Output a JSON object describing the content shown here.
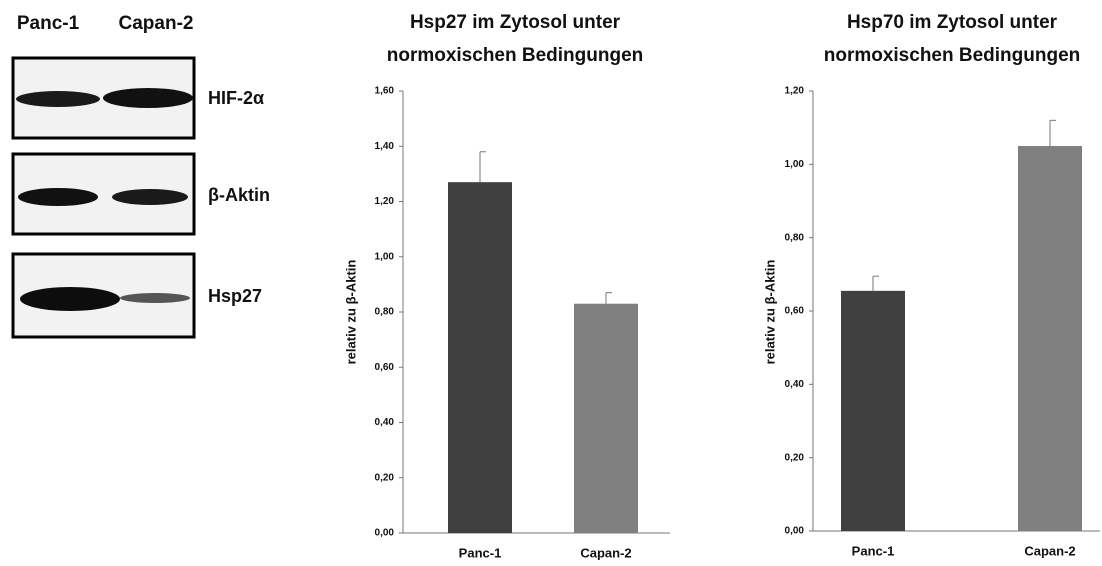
{
  "blot": {
    "columns": [
      "Panc-1",
      "Capan-2"
    ],
    "rows": [
      "HIF-2α",
      "β-Aktin",
      "Hsp27"
    ]
  },
  "chart_data": [
    {
      "type": "bar",
      "title": [
        "Hsp27 im Zytosol unter",
        "normoxischen Bedingungen"
      ],
      "y_label": "relativ zu β-Aktin",
      "categories": [
        "Panc-1",
        "Capan-2"
      ],
      "values": [
        1.27,
        0.83
      ],
      "errors": [
        0.11,
        0.04
      ],
      "colors": [
        "#404040",
        "#808080"
      ],
      "ylim": [
        0,
        1.6
      ],
      "yticks": [
        {
          "value": 0,
          "label": "0,00"
        },
        {
          "value": 0.2,
          "label": "0,20"
        },
        {
          "value": 0.4,
          "label": "0,40"
        },
        {
          "value": 0.6,
          "label": "0,60"
        },
        {
          "value": 0.8,
          "label": "0,80"
        },
        {
          "value": 1.0,
          "label": "1,00"
        },
        {
          "value": 1.2,
          "label": "1,20"
        },
        {
          "value": 1.4,
          "label": "1,40"
        },
        {
          "value": 1.6,
          "label": "1,60"
        }
      ]
    },
    {
      "type": "bar",
      "title": [
        "Hsp70 im Zytosol unter",
        "normoxischen Bedingungen"
      ],
      "y_label": "relativ zu β-Aktin",
      "categories": [
        "Panc-1",
        "Capan-2"
      ],
      "values": [
        0.655,
        1.05
      ],
      "errors": [
        0.04,
        0.07
      ],
      "colors": [
        "#404040",
        "#808080"
      ],
      "ylim": [
        0,
        1.2
      ],
      "yticks": [
        {
          "value": 0,
          "label": "0,00"
        },
        {
          "value": 0.2,
          "label": "0,20"
        },
        {
          "value": 0.4,
          "label": "0,40"
        },
        {
          "value": 0.6,
          "label": "0,60"
        },
        {
          "value": 0.8,
          "label": "0,80"
        },
        {
          "value": 1.0,
          "label": "1,00"
        },
        {
          "value": 1.2,
          "label": "1,20"
        }
      ]
    }
  ]
}
